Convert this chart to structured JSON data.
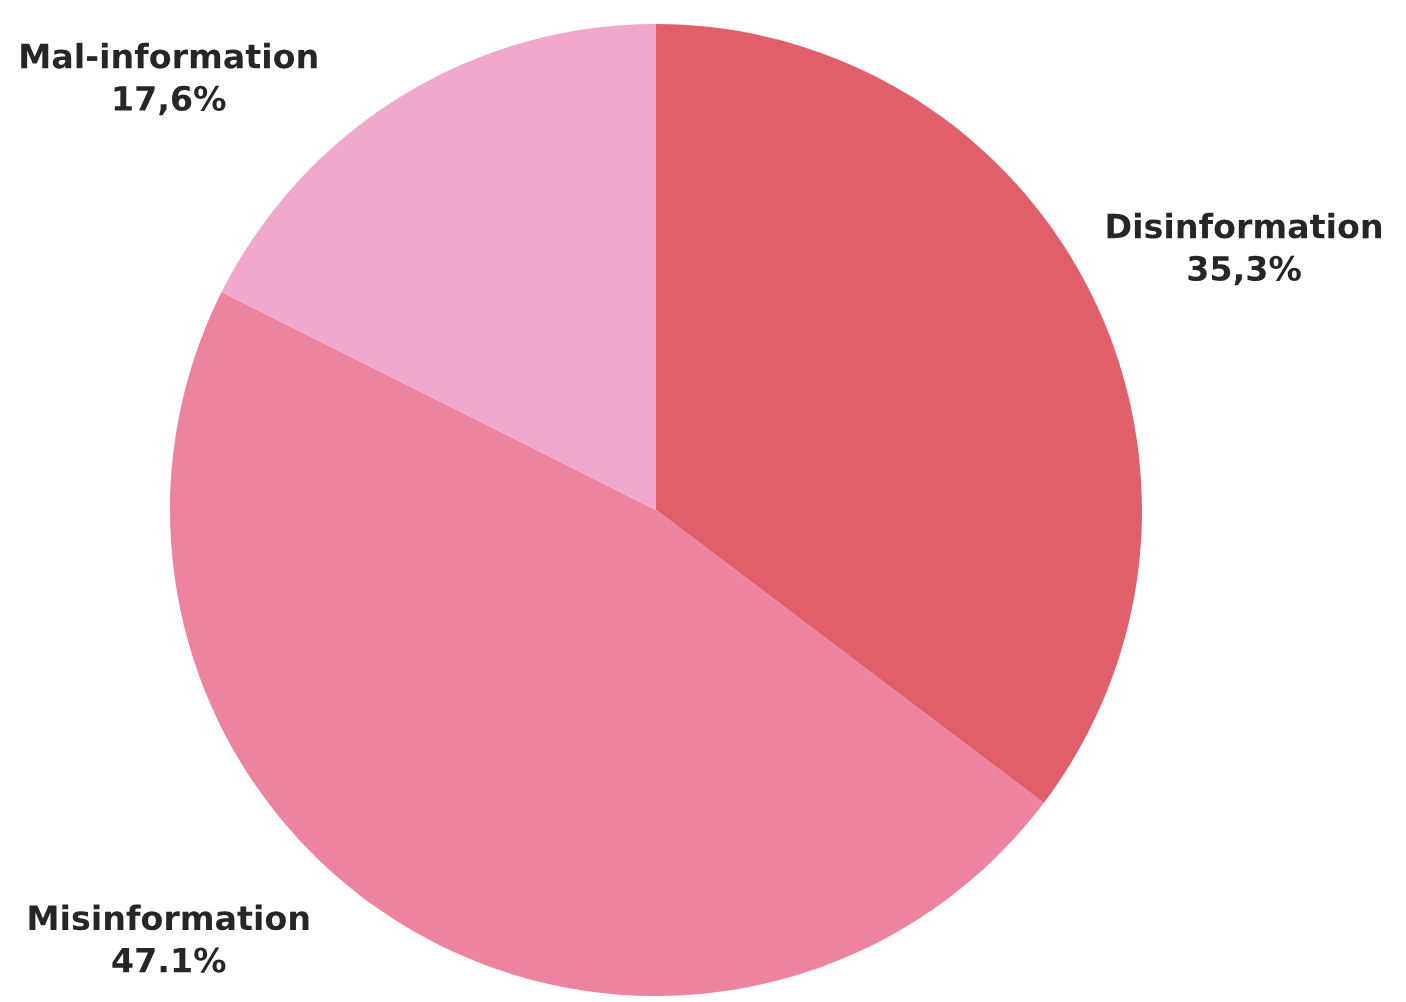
{
  "chart_data": {
    "type": "pie",
    "categories": [
      "Disinformation",
      "Misinformation",
      "Mal-information"
    ],
    "values": [
      35.3,
      47.1,
      17.6
    ],
    "value_labels": [
      "35,3%",
      "47.1%",
      "17,6%"
    ],
    "colors": [
      "#e05f6a",
      "#ec84a0",
      "#f0a9cc"
    ],
    "legend": false
  }
}
